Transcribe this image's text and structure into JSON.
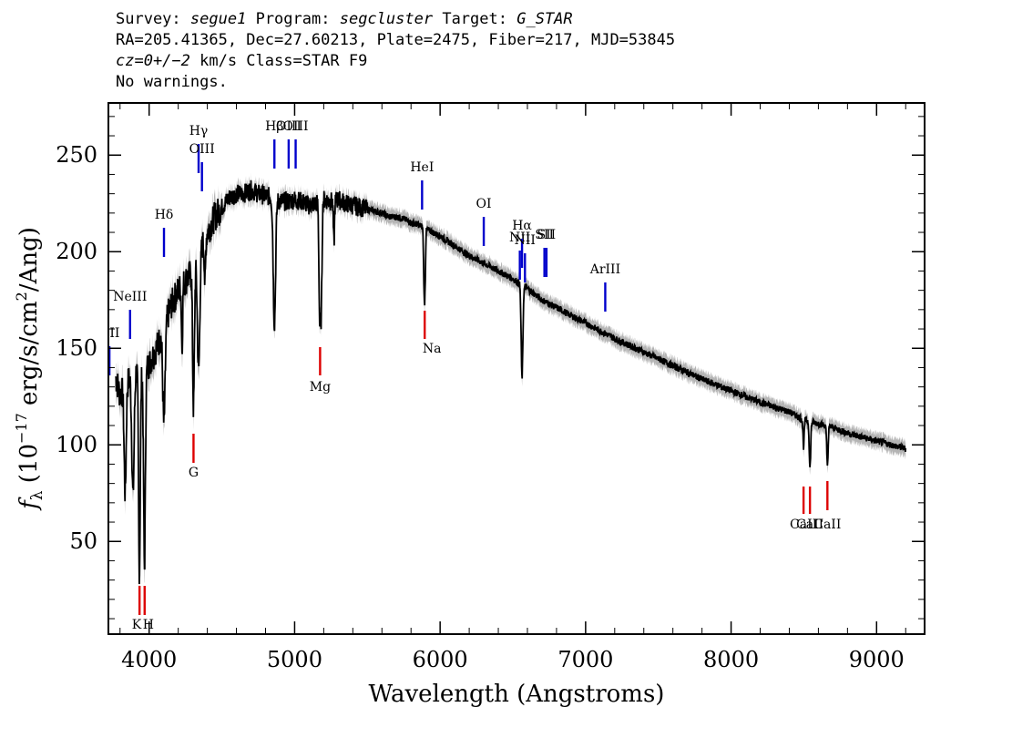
{
  "header": {
    "survey_label": "Survey:",
    "survey": "segue1",
    "program_label": "Program:",
    "program": "segcluster",
    "target_label": "Target:",
    "target": "G_STAR",
    "line2": "RA=205.41365, Dec=27.60213, Plate=2475, Fiber=217, MJD=53845",
    "cz": "cz=0+/−2",
    "cz_rest": " km/s Class=STAR F9",
    "line4": "No warnings."
  },
  "chart_data": {
    "type": "line",
    "xlabel": "Wavelength (Angstroms)",
    "ylabel_f": "f",
    "ylabel_sub": "λ",
    "ylabel_rest": " (10",
    "ylabel_exp": "−17",
    "ylabel_units": " erg/s/cm",
    "ylabel_exp2": "2",
    "ylabel_end": "/Ang)",
    "xlim": [
      3720,
      9330
    ],
    "ylim": [
      2,
      277
    ],
    "xticks": [
      4000,
      5000,
      6000,
      7000,
      8000,
      9000
    ],
    "xtick_labels": [
      "4000",
      "5000",
      "6000",
      "7000",
      "8000",
      "9000"
    ],
    "yticks": [
      50,
      100,
      150,
      200,
      250
    ],
    "ytick_labels": [
      "50",
      "100",
      "150",
      "200",
      "250"
    ],
    "grid": false,
    "colors": {
      "spectrum": "#000000",
      "error_band": "#b4b4b4",
      "emission_marker": "#0000cc",
      "absorption_marker": "#dd0000"
    },
    "continuum": {
      "x": [
        3770,
        3800,
        3830,
        3870,
        3920,
        3960,
        4000,
        4050,
        4100,
        4150,
        4200,
        4250,
        4300,
        4350,
        4400,
        4450,
        4500,
        4550,
        4600,
        4650,
        4700,
        4750,
        4800,
        4850,
        4900,
        4950,
        5000,
        5050,
        5100,
        5150,
        5200,
        5250,
        5300,
        5350,
        5400,
        5450,
        5500,
        5550,
        5600,
        5650,
        5700,
        5750,
        5800,
        5850,
        5900,
        5950,
        6000,
        6100,
        6200,
        6300,
        6400,
        6500,
        6600,
        6700,
        6800,
        6900,
        7000,
        7200,
        7400,
        7600,
        7800,
        8000,
        8200,
        8400,
        8500,
        8600,
        8700,
        8800,
        8900,
        9000,
        9100,
        9200
      ],
      "y": [
        135,
        126,
        130,
        135,
        140,
        137,
        142,
        150,
        160,
        172,
        180,
        185,
        190,
        200,
        210,
        218,
        223,
        228,
        230,
        230,
        232,
        230,
        229,
        228,
        226,
        226,
        227,
        226,
        224,
        225,
        227,
        226,
        227,
        225,
        224,
        223,
        222,
        221,
        220,
        218,
        218,
        217,
        215,
        214,
        212,
        210,
        208,
        203,
        198,
        194,
        190,
        186,
        181,
        175,
        171,
        167,
        163,
        155,
        148,
        141,
        134,
        128,
        122,
        117,
        113,
        111,
        109,
        106,
        104,
        102,
        100,
        98
      ]
    },
    "absorption_features": [
      {
        "center": 3835,
        "depth": 55,
        "width": 7
      },
      {
        "center": 3889,
        "depth": 62,
        "width": 8
      },
      {
        "center": 3933,
        "depth": 105,
        "width": 6
      },
      {
        "center": 3968,
        "depth": 102,
        "width": 6
      },
      {
        "center": 4102,
        "depth": 50,
        "width": 8
      },
      {
        "center": 4226,
        "depth": 32,
        "width": 4
      },
      {
        "center": 4305,
        "depth": 72,
        "width": 6
      },
      {
        "center": 4340,
        "depth": 60,
        "width": 8
      },
      {
        "center": 4384,
        "depth": 24,
        "width": 4
      },
      {
        "center": 4861,
        "depth": 65,
        "width": 8
      },
      {
        "center": 5172,
        "depth": 58,
        "width": 5
      },
      {
        "center": 5183,
        "depth": 55,
        "width": 5
      },
      {
        "center": 5270,
        "depth": 22,
        "width": 4
      },
      {
        "center": 5890,
        "depth": 27,
        "width": 4
      },
      {
        "center": 5896,
        "depth": 25,
        "width": 4
      },
      {
        "center": 6563,
        "depth": 48,
        "width": 6
      },
      {
        "center": 8498,
        "depth": 14,
        "width": 4
      },
      {
        "center": 8542,
        "depth": 24,
        "width": 5
      },
      {
        "center": 8662,
        "depth": 20,
        "width": 5
      }
    ],
    "emission_lines": [
      {
        "label": "OII",
        "wavelength": 3727
      },
      {
        "label": "NeIII",
        "wavelength": 3869
      },
      {
        "label": "Hδ",
        "wavelength": 4102
      },
      {
        "label": "Hγ",
        "wavelength": 4340
      },
      {
        "label": "OIII",
        "wavelength": 4363
      },
      {
        "label": "Hβ",
        "wavelength": 4861
      },
      {
        "label": "OIII",
        "wavelength": 4959
      },
      {
        "label": "OIII",
        "wavelength": 5007
      },
      {
        "label": "HeI",
        "wavelength": 5876
      },
      {
        "label": "OI",
        "wavelength": 6300
      },
      {
        "label": "NII",
        "wavelength": 6548
      },
      {
        "label": "Hα",
        "wavelength": 6563
      },
      {
        "label": "NII",
        "wavelength": 6583
      },
      {
        "label": "SII",
        "wavelength": 6717
      },
      {
        "label": "SII",
        "wavelength": 6731
      },
      {
        "label": "ArIII",
        "wavelength": 7135
      }
    ],
    "absorption_lines": [
      {
        "label": "K",
        "wavelength": 3934
      },
      {
        "label": "H",
        "wavelength": 3969
      },
      {
        "label": "G",
        "wavelength": 4305
      },
      {
        "label": "Mg",
        "wavelength": 5175
      },
      {
        "label": "Na",
        "wavelength": 5894
      },
      {
        "label": "CaII",
        "wavelength": 8498
      },
      {
        "label": "CaII",
        "wavelength": 8542
      },
      {
        "label": "CaII",
        "wavelength": 8662
      }
    ]
  }
}
